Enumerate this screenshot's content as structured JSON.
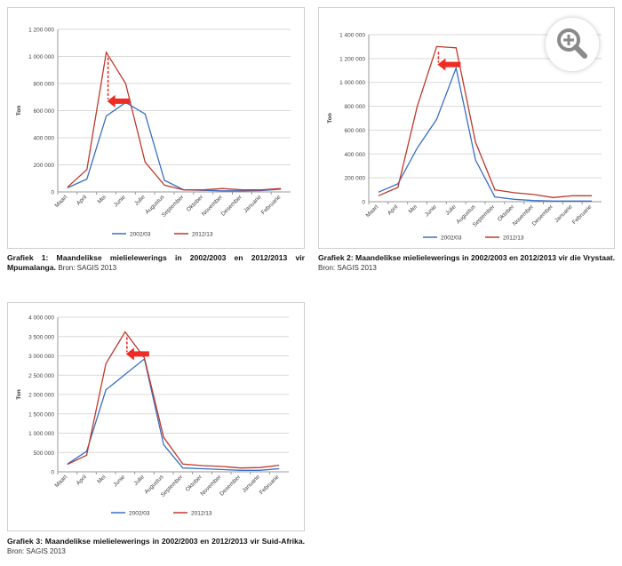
{
  "charts": [
    {
      "id": "mpumalanga",
      "caption_bold": "Grafiek 1: Maandelikse mielielewerings in 2002/2003 en 2012/2013 vir Mpumalanga.",
      "caption_source": "Bron: SAGIS 2013",
      "chart_data": {
        "type": "line",
        "title": "",
        "xlabel": "",
        "ylabel": "Ton",
        "ylim": [
          0,
          1200000
        ],
        "yticks": [
          "0",
          "200 000",
          "400 000",
          "600 000",
          "800 000",
          "1 000 000",
          "1 200 000"
        ],
        "categories": [
          "Maart",
          "April",
          "Mei",
          "Junie",
          "Julie",
          "Augustus",
          "September",
          "Oktober",
          "November",
          "Desember",
          "Januarie",
          "Februarie"
        ],
        "series": [
          {
            "name": "2002/03",
            "color": "#3a6fc4",
            "values": [
              30000,
              95000,
              560000,
              660000,
              575000,
              85000,
              15000,
              12000,
              8000,
              8000,
              10000,
              20000
            ]
          },
          {
            "name": "2012/13",
            "color": "#c0392b",
            "values": [
              35000,
              165000,
              1030000,
              800000,
              220000,
              50000,
              15000,
              15000,
              25000,
              15000,
              15000,
              25000
            ]
          }
        ],
        "legend": "bottom",
        "annotation": {
          "type": "arrow",
          "color": "#ee2b24",
          "peak_category": "Mei",
          "from_value": 1030000,
          "to_value": 670000
        }
      }
    },
    {
      "id": "vrystaat",
      "caption_bold": "Grafiek 2: Maandelikse mielielewerings in 2002/2003 en 2012/2013 vir die Vrystaat.",
      "caption_source": "Bron: SAGIS 2013",
      "chart_data": {
        "type": "line",
        "title": "",
        "xlabel": "",
        "ylabel": "Ton",
        "ylim": [
          0,
          1400000
        ],
        "yticks": [
          "0",
          "200 000",
          "400 000",
          "600 000",
          "800 000",
          "1 000 000",
          "1 200 000",
          "1 400 000"
        ],
        "categories": [
          "Maart",
          "April",
          "Mei",
          "Junie",
          "Julie",
          "Augustus",
          "September",
          "Oktober",
          "November",
          "Desember",
          "Januarie",
          "Februarie"
        ],
        "series": [
          {
            "name": "2002/03",
            "color": "#3a6fc4",
            "values": [
              80000,
              150000,
              450000,
              690000,
              1120000,
              350000,
              40000,
              20000,
              10000,
              5000,
              5000,
              5000
            ]
          },
          {
            "name": "2012/13",
            "color": "#c0392b",
            "values": [
              50000,
              120000,
              800000,
              1300000,
              1290000,
              500000,
              100000,
              75000,
              60000,
              35000,
              50000,
              50000
            ]
          }
        ],
        "legend": "bottom",
        "annotation": {
          "type": "arrow",
          "color": "#ee2b24",
          "peak_category": "Junie",
          "from_value": 1300000,
          "to_value": 1150000
        }
      }
    },
    {
      "id": "suid-afrika",
      "caption_bold": "Grafiek 3: Maandelikse mielielewerings in 2002/2003 en 2012/2013 vir Suid-Afrika.",
      "caption_source": "Bron: SAGIS 2013",
      "chart_data": {
        "type": "line",
        "title": "",
        "xlabel": "",
        "ylabel": "Ton",
        "ylim": [
          0,
          4000000
        ],
        "yticks": [
          "0",
          "500 000",
          "1 000 000",
          "1 500 000",
          "2 000 000",
          "2 500 000",
          "3 000 000",
          "3 500 000",
          "4 000 000"
        ],
        "categories": [
          "Maart",
          "April",
          "Mei",
          "Junie",
          "Julie",
          "Augustus",
          "September",
          "Oktober",
          "November",
          "Desember",
          "Januarie",
          "Februarie"
        ],
        "series": [
          {
            "name": "2002/03",
            "color": "#3a6fc4",
            "values": [
              200000,
              530000,
              2120000,
              2520000,
              2920000,
              700000,
              100000,
              80000,
              60000,
              40000,
              40000,
              80000
            ]
          },
          {
            "name": "2012/13",
            "color": "#c0392b",
            "values": [
              190000,
              430000,
              2800000,
              3620000,
              2950000,
              890000,
              200000,
              160000,
              140000,
              100000,
              110000,
              170000
            ]
          }
        ],
        "legend": "bottom",
        "annotation": {
          "type": "arrow",
          "color": "#ee2b24",
          "peak_category": "Junie",
          "from_value": 3620000,
          "to_value": 3050000
        }
      }
    }
  ],
  "zoom_button": {
    "icon": "zoom-in-icon"
  }
}
